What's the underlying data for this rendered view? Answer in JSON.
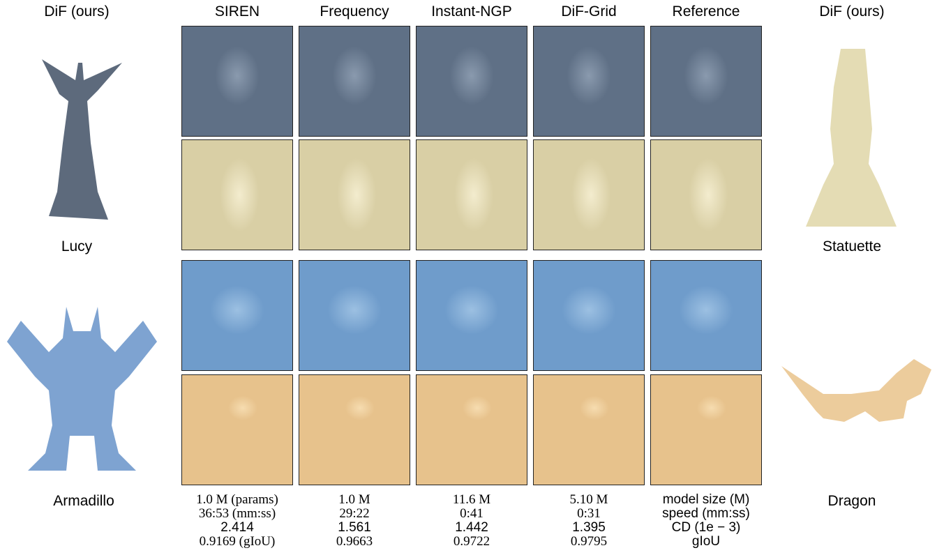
{
  "left": {
    "header": "DiF (ours)",
    "models": [
      "Lucy",
      "Armadillo"
    ]
  },
  "right": {
    "header": "DiF (ours)",
    "models": [
      "Statuette",
      "Dragon"
    ]
  },
  "methods": [
    {
      "name": "SIREN",
      "stats": [
        "1.0 M (params)",
        "36:53 (mm:ss)",
        "2.414",
        "0.9169 (gIoU)"
      ]
    },
    {
      "name": "Frequency",
      "stats": [
        "1.0 M",
        "29:22",
        "1.561",
        "0.9663"
      ]
    },
    {
      "name": "Instant-NGP",
      "stats": [
        "11.6 M",
        "0:41",
        "1.442",
        "0.9722"
      ]
    },
    {
      "name": "DiF-Grid",
      "stats": [
        "5.10 M",
        "0:31",
        "1.395",
        "0.9795"
      ]
    },
    {
      "name": "Reference",
      "stats": [
        "model size (M)",
        "speed (mm:ss)",
        "CD (1e − 3)",
        "gIoU"
      ]
    }
  ]
}
